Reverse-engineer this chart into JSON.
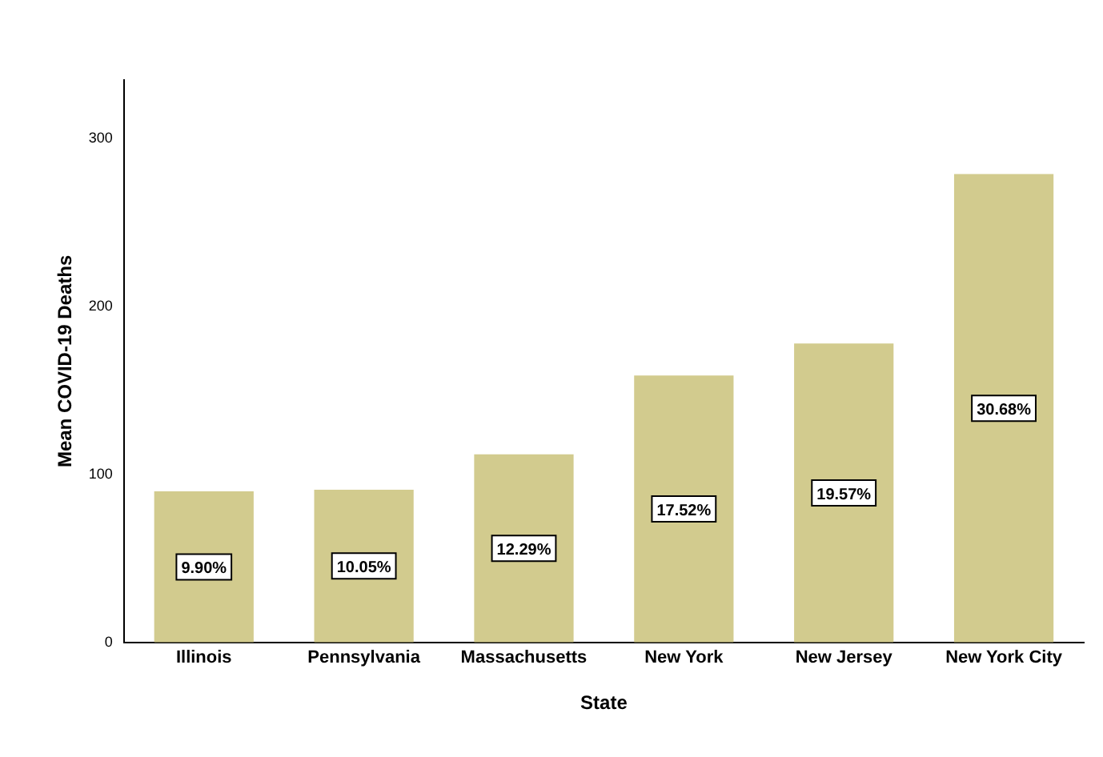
{
  "chart_data": {
    "type": "bar",
    "xlabel": "State",
    "ylabel": "Mean COVID-19 Deaths",
    "categories": [
      "Illinois",
      "Pennsylvania",
      "Massachusetts",
      "New York",
      "New Jersey",
      "New York City"
    ],
    "values": [
      90,
      91,
      112,
      159,
      178,
      279
    ],
    "annotations": [
      {
        "text": "9.90%",
        "x": "Illinois",
        "y": 45
      },
      {
        "text": "10.05%",
        "x": "Pennsylvania",
        "y": 45.5
      },
      {
        "text": "12.29%",
        "x": "Massachusetts",
        "y": 56
      },
      {
        "text": "17.52%",
        "x": "New York",
        "y": 79.5
      },
      {
        "text": "19.57%",
        "x": "New Jersey",
        "y": 89
      },
      {
        "text": "30.68%",
        "x": "New York City",
        "y": 139.5
      }
    ],
    "color": "#d2cb8e",
    "ylim": [
      0,
      335
    ],
    "yticks": [
      0,
      100,
      200,
      300
    ],
    "grid": false,
    "legend": false
  }
}
